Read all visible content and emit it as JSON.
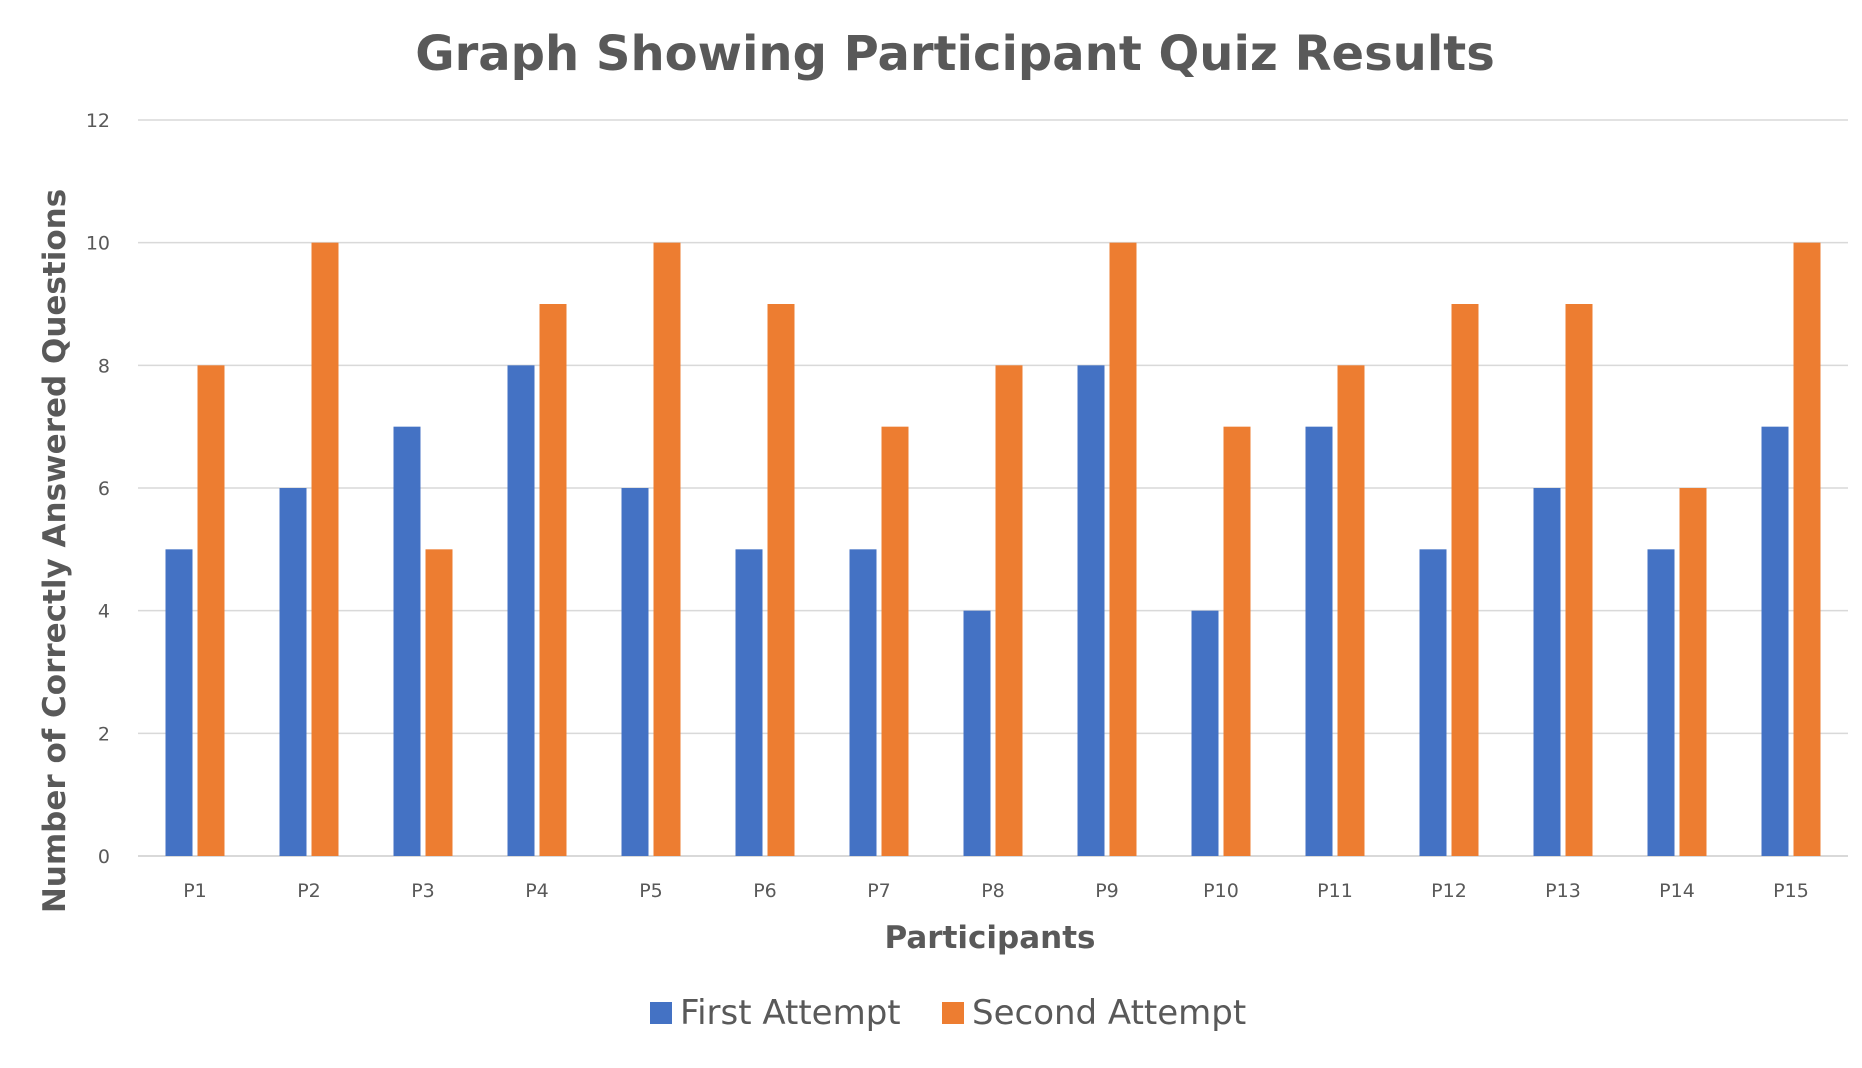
{
  "chart_data": {
    "type": "bar",
    "title": "Graph Showing Participant Quiz Results",
    "xlabel": "Participants",
    "ylabel": "Number of Correctly Answered Questions",
    "categories": [
      "P1",
      "P2",
      "P3",
      "P4",
      "P5",
      "P6",
      "P7",
      "P8",
      "P9",
      "P10",
      "P11",
      "P12",
      "P13",
      "P14",
      "P15"
    ],
    "series": [
      {
        "name": "First Attempt",
        "color": "#4472c4",
        "values": [
          5,
          6,
          7,
          8,
          6,
          5,
          5,
          4,
          8,
          4,
          7,
          5,
          6,
          5,
          7
        ]
      },
      {
        "name": "Second Attempt",
        "color": "#ed7d31",
        "values": [
          8,
          10,
          5,
          9,
          10,
          9,
          7,
          8,
          10,
          7,
          8,
          9,
          9,
          6,
          10
        ]
      }
    ],
    "ylim": [
      0,
      12
    ],
    "yticks": [
      0,
      2,
      4,
      6,
      8,
      10,
      12
    ],
    "grid": true,
    "legend_position": "bottom"
  }
}
